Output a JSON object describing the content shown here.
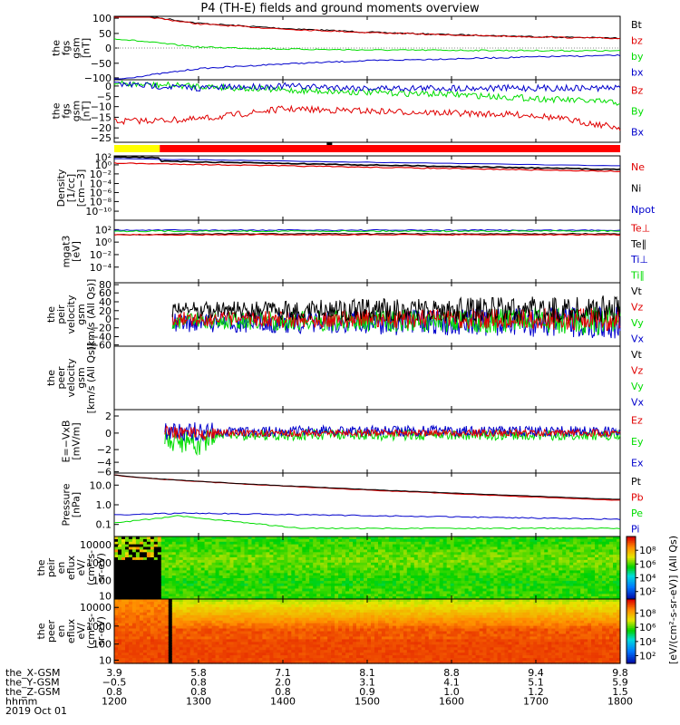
{
  "title": "P4 (TH-E) fields and ground moments overview",
  "colors": {
    "black": "#000000",
    "red": "#e00000",
    "green": "#00dd00",
    "blue": "#0000cc",
    "yellow": "#ffff00"
  },
  "chart_data": [
    {
      "type": "line",
      "panel": "fgs_gsm",
      "ylabel": [
        "the",
        "fgs",
        "gsm",
        "[nT]"
      ],
      "ylim": [
        -100,
        100
      ],
      "yticks": [
        "100",
        "50",
        "0",
        "−50",
        "−100"
      ],
      "x": [
        "1200",
        "1300",
        "1400",
        "1500",
        "1600",
        "1700",
        "1800"
      ],
      "series": [
        {
          "name": "Bt",
          "values": [
            115,
            78,
            62,
            50,
            42,
            36,
            31
          ]
        },
        {
          "name": "bz",
          "values": [
            112,
            76,
            60,
            49,
            41,
            35,
            30
          ]
        },
        {
          "name": "by",
          "values": [
            30,
            3,
            -3,
            -6,
            -7,
            -8,
            -9
          ]
        },
        {
          "name": "bx",
          "values": [
            -100,
            -65,
            -50,
            -40,
            -34,
            -28,
            -23
          ]
        }
      ]
    },
    {
      "type": "line",
      "panel": "fgs_gsm_dc",
      "ylabel": [
        "the",
        "fgs",
        "gsm",
        "[nT]"
      ],
      "ylim": [
        -27,
        3
      ],
      "yticks": [
        "0",
        "−5",
        "−10",
        "−15",
        "−20",
        "−25"
      ],
      "x": [
        "1200",
        "1300",
        "1400",
        "1500",
        "1600",
        "1700",
        "1800"
      ],
      "series": [
        {
          "name": "Bz",
          "values": [
            -17,
            -16,
            -11,
            -12,
            -13,
            -14,
            -20
          ]
        },
        {
          "name": "By",
          "values": [
            1,
            0,
            -2,
            -3,
            -4,
            -6,
            -8
          ]
        },
        {
          "name": "Bx",
          "values": [
            1,
            -1,
            0,
            -1,
            -1,
            -1,
            -1
          ]
        }
      ]
    },
    {
      "type": "line",
      "panel": "density",
      "ylabel": [
        "Density",
        "[1/cc]",
        "[cm−3]"
      ],
      "yscale": "log",
      "ylim": [
        1e-12,
        100.0
      ],
      "yticks": [
        "10²",
        "10⁰",
        "10⁻²",
        "10⁻⁴",
        "10⁻⁶",
        "10⁻⁸",
        "10⁻¹⁰"
      ],
      "series": [
        {
          "name": "Ne"
        },
        {
          "name": "Ni"
        },
        {
          "name": "Npot"
        }
      ]
    },
    {
      "type": "line",
      "panel": "temperature",
      "ylabel": [
        "mgat3",
        "[eV]"
      ],
      "yscale": "log",
      "ylim": [
        1e-06,
        10000.0
      ],
      "yticks": [
        "10²",
        "10⁰",
        "10⁻²",
        "10⁻⁴"
      ],
      "series": [
        {
          "name": "Te⊥"
        },
        {
          "name": "Te∥"
        },
        {
          "name": "Ti⊥"
        },
        {
          "name": "Ti∥"
        }
      ]
    },
    {
      "type": "line",
      "panel": "peir_velocity",
      "ylabel": [
        "the",
        "peir",
        "velocity",
        "gsm",
        "[km/s (All Qs)]"
      ],
      "ylim": [
        -60,
        80
      ],
      "yticks": [
        "80",
        "60",
        "40",
        "20",
        "0",
        "−20",
        "−40",
        "−60"
      ],
      "series": [
        {
          "name": "Vt"
        },
        {
          "name": "Vz"
        },
        {
          "name": "Vy"
        },
        {
          "name": "Vx"
        }
      ]
    },
    {
      "type": "line",
      "panel": "peer_velocity",
      "ylabel": [
        "the",
        "peer",
        "velocity",
        "gsm",
        "[km/s (All Qs)]"
      ],
      "series": [
        {
          "name": "Vt"
        },
        {
          "name": "Vz"
        },
        {
          "name": "Vy"
        },
        {
          "name": "Vx"
        }
      ]
    },
    {
      "type": "line",
      "panel": "exb",
      "ylabel": [
        "E=−VxB",
        "[mV/m]"
      ],
      "ylim": [
        -6,
        2
      ],
      "yticks": [
        "2",
        "0",
        "−2",
        "−4",
        "−6"
      ],
      "series": [
        {
          "name": "Ez"
        },
        {
          "name": "Ey"
        },
        {
          "name": "Ex"
        }
      ]
    },
    {
      "type": "line",
      "panel": "pressure",
      "ylabel": [
        "Pressure",
        "[nPa]"
      ],
      "yscale": "log",
      "ylim": [
        0.05,
        20
      ],
      "yticks": [
        "10.0",
        "1.0",
        "0.1"
      ],
      "series": [
        {
          "name": "Pt"
        },
        {
          "name": "Pb"
        },
        {
          "name": "Pe"
        },
        {
          "name": "Pi"
        }
      ]
    },
    {
      "type": "heatmap",
      "panel": "peir_eflux",
      "ylabel": [
        "the",
        "peir",
        "en",
        "eflux",
        "eV/",
        "(cm²‐s‐",
        "sr‐eV)"
      ],
      "yscale": "log",
      "yticks": [
        "10000",
        "1000",
        "100",
        "10"
      ]
    },
    {
      "type": "heatmap",
      "panel": "peer_eflux",
      "ylabel": [
        "the",
        "peer",
        "en",
        "eflux",
        "eV/",
        "(cm²‐s‐",
        "sr‐eV)"
      ],
      "yscale": "log",
      "yticks": [
        "10000",
        "1000",
        "100",
        "10"
      ]
    }
  ],
  "colorbar": {
    "label": "[eV/(cm²‐s‐sr‐eV)]  (All Qs)",
    "ticks": [
      "10⁸",
      "10⁶",
      "10⁴",
      "10²"
    ]
  },
  "legends": {
    "fgs_gsm": [
      [
        "Bt",
        "#000000"
      ],
      [
        "bz",
        "#e00000"
      ],
      [
        "by",
        "#00dd00"
      ],
      [
        "bx",
        "#0000cc"
      ]
    ],
    "fgs_gsm_dc": [
      [
        "Bz",
        "#e00000"
      ],
      [
        "By",
        "#00dd00"
      ],
      [
        "Bx",
        "#0000cc"
      ]
    ],
    "density": [
      [
        "Ne",
        "#e00000"
      ],
      [
        "Ni",
        "#000000"
      ],
      [
        "Npot",
        "#0000cc"
      ]
    ],
    "temperature": [
      [
        "Te⊥",
        "#e00000"
      ],
      [
        "Te∥",
        "#000000"
      ],
      [
        "Ti⊥",
        "#0000cc"
      ],
      [
        "Ti∥",
        "#00dd00"
      ]
    ],
    "peir_velocity": [
      [
        "Vt",
        "#000000"
      ],
      [
        "Vz",
        "#e00000"
      ],
      [
        "Vy",
        "#00dd00"
      ],
      [
        "Vx",
        "#0000cc"
      ]
    ],
    "peer_velocity": [
      [
        "Vt",
        "#000000"
      ],
      [
        "Vz",
        "#e00000"
      ],
      [
        "Vy",
        "#00dd00"
      ],
      [
        "Vx",
        "#0000cc"
      ]
    ],
    "exb": [
      [
        "Ez",
        "#e00000"
      ],
      [
        "Ey",
        "#00dd00"
      ],
      [
        "Ex",
        "#0000cc"
      ]
    ],
    "pressure": [
      [
        "Pt",
        "#000000"
      ],
      [
        "Pb",
        "#e00000"
      ],
      [
        "Pe",
        "#00dd00"
      ],
      [
        "Pi",
        "#0000cc"
      ]
    ]
  },
  "bottom_axis": {
    "rows": [
      {
        "label": "the_X‐GSM",
        "values": [
          "3.9",
          "5.8",
          "7.1",
          "8.1",
          "8.8",
          "9.4",
          "9.8"
        ]
      },
      {
        "label": "the_Y‐GSM",
        "values": [
          "−0.5",
          "0.8",
          "2.0",
          "3.1",
          "4.1",
          "5.1",
          "5.9"
        ]
      },
      {
        "label": "the_Z‐GSM",
        "values": [
          "0.8",
          "0.8",
          "0.8",
          "0.9",
          "1.0",
          "1.2",
          "1.5"
        ]
      },
      {
        "label": "hhmm",
        "values": [
          "1200",
          "1300",
          "1400",
          "1500",
          "1600",
          "1700",
          "1800"
        ]
      }
    ],
    "date": "2019 Oct 01"
  }
}
